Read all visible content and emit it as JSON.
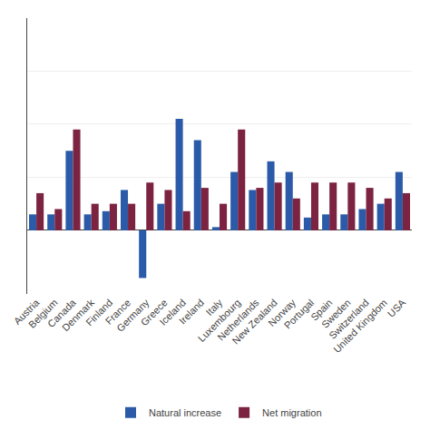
{
  "chart_data": {
    "type": "bar",
    "categories": [
      "Austria",
      "Belgium",
      "Canada",
      "Denmark",
      "Finland",
      "France",
      "Germany",
      "Greece",
      "Iceland",
      "Ireland",
      "Italy",
      "Luxembourg",
      "Netherlands",
      "New Zealand",
      "Norway",
      "Portugal",
      "Spain",
      "Sweden",
      "Switzerland",
      "United Kingdom",
      "USA"
    ],
    "series": [
      {
        "name": "Natural increase",
        "color": "#2B5BA8",
        "values": [
          1.5,
          1.5,
          7.5,
          1.5,
          1.8,
          3.8,
          -4.5,
          2.5,
          10.5,
          8.5,
          0.3,
          5.5,
          3.8,
          6.5,
          5.5,
          1.2,
          1.5,
          1.5,
          2.0,
          2.5,
          5.5
        ]
      },
      {
        "name": "Net migration",
        "color": "#7B2340",
        "values": [
          3.5,
          2.0,
          9.5,
          2.5,
          2.5,
          2.5,
          4.5,
          3.8,
          1.8,
          4.0,
          2.5,
          9.5,
          4.0,
          4.5,
          3.0,
          4.5,
          4.5,
          4.5,
          4.0,
          3.0,
          3.5
        ]
      }
    ],
    "ylim": [
      -6,
      20
    ],
    "yticks": [
      0,
      5,
      10,
      15,
      20
    ],
    "grid": true,
    "legend": "bottom",
    "tick_labels": "x"
  }
}
